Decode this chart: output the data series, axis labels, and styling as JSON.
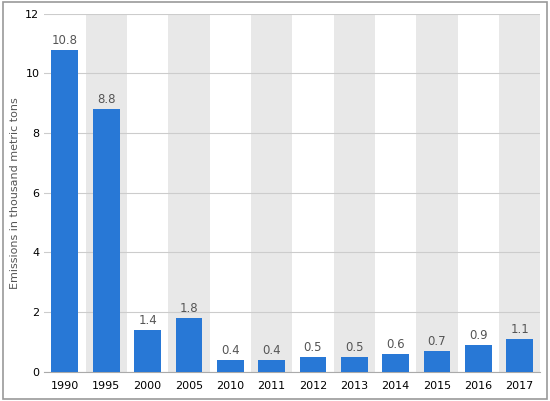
{
  "categories": [
    "1990",
    "1995",
    "2000",
    "2005",
    "2010",
    "2011",
    "2012",
    "2013",
    "2014",
    "2015",
    "2016",
    "2017"
  ],
  "values": [
    10.8,
    8.8,
    1.4,
    1.8,
    0.4,
    0.4,
    0.5,
    0.5,
    0.6,
    0.7,
    0.9,
    1.1
  ],
  "bar_color": "#2878d6",
  "ylabel": "Emissions in thousand metric tons",
  "ylim": [
    0,
    12
  ],
  "yticks": [
    0,
    2,
    4,
    6,
    8,
    10,
    12
  ],
  "plot_background_color": "#ffffff",
  "outer_background": "#ffffff",
  "band_color": "#e8e8e8",
  "grid_color": "#cccccc",
  "label_fontsize": 8.5,
  "axis_label_fontsize": 8,
  "border_color": "#999999",
  "bar_width": 0.65,
  "value_label_color": "#555555"
}
